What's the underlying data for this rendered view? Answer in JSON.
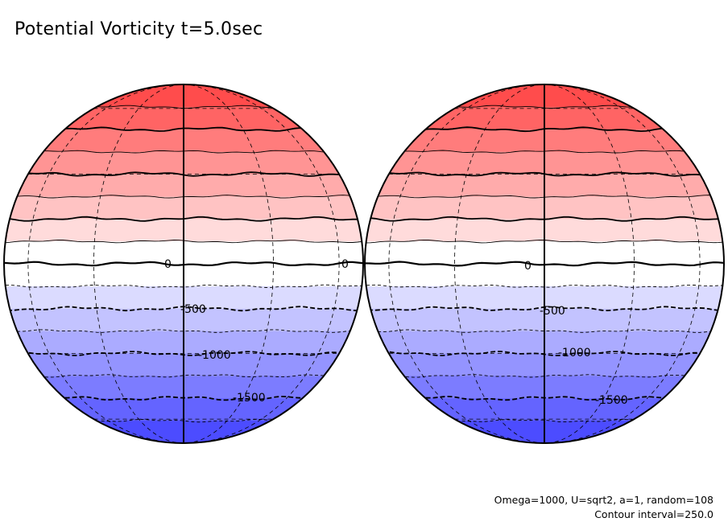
{
  "chart_data": {
    "type": "contour",
    "title": "Potential Vorticity t=5.0sec",
    "annotations": {
      "parameters": "Omega=1000, U=sqrt2, a=1, random=108",
      "contour_interval": "Contour interval=250.0"
    },
    "contour_interval": 250.0,
    "value_range": [
      -2000,
      2000
    ],
    "projection": "orthographic (two hemispheres)",
    "contour_labels": [
      {
        "globe": "left",
        "values": [
          "0",
          "0",
          "-500",
          "-1000",
          "-1500"
        ]
      },
      {
        "globe": "right",
        "values": [
          "0",
          "-500",
          "-1000",
          "-1500"
        ]
      }
    ],
    "colors": {
      "max_positive": "#ff4040",
      "zero": "#ffffff",
      "max_negative": "#4040ff"
    }
  }
}
